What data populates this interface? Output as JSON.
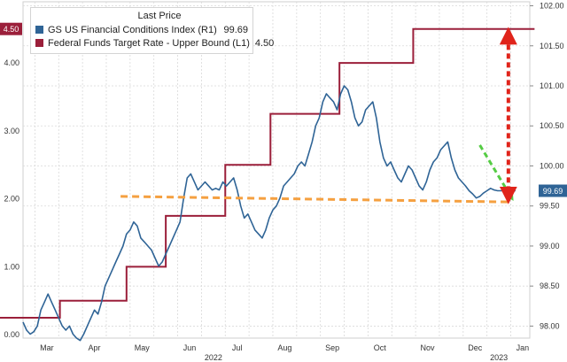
{
  "chart_data": {
    "type": "line",
    "title": "",
    "legend": {
      "header": "Last Price",
      "placement": "top-left"
    },
    "grid": true,
    "x_axis": {
      "labels": [
        "Mar",
        "Apr",
        "May",
        "Jun",
        "Jul",
        "Aug",
        "Sep",
        "Oct",
        "Nov",
        "Dec",
        "Jan"
      ],
      "year_labels": [
        {
          "text": "2022",
          "month_index": 9
        },
        {
          "text": "2023",
          "month_index": 21
        }
      ],
      "range": [
        1.5,
        22.8
      ]
    },
    "y_left": {
      "ticks": [
        "0.00",
        "1.00",
        "2.00",
        "3.00",
        "4.00"
      ],
      "tick_values": [
        0,
        1,
        2,
        3,
        4
      ],
      "range": [
        -0.05,
        4.9
      ]
    },
    "y_right": {
      "ticks": [
        "98.00",
        "98.50",
        "99.00",
        "99.50",
        "100.00",
        "100.50",
        "101.00",
        "101.50",
        "102.00"
      ],
      "tick_values": [
        98.0,
        98.5,
        99.0,
        99.5,
        100.0,
        100.5,
        101.0,
        101.5,
        102.0
      ],
      "range": [
        97.85,
        102.05
      ]
    },
    "series": [
      {
        "name": "GS US Financial Conditions Index (R1)",
        "last_value": "99.69",
        "axis": "right",
        "color": "#2f6496",
        "x": [
          1.5,
          1.65,
          1.8,
          1.95,
          2.1,
          2.25,
          2.4,
          2.55,
          2.7,
          2.85,
          3.0,
          3.15,
          3.3,
          3.45,
          3.6,
          3.75,
          3.9,
          4.05,
          4.2,
          4.35,
          4.5,
          4.65,
          4.8,
          4.95,
          5.1,
          5.25,
          5.4,
          5.55,
          5.7,
          5.85,
          6.0,
          6.15,
          6.3,
          6.45,
          6.6,
          6.75,
          6.9,
          7.05,
          7.2,
          7.35,
          7.5,
          7.65,
          7.8,
          7.95,
          8.1,
          8.25,
          8.4,
          8.55,
          8.7,
          8.85,
          9.0,
          9.15,
          9.3,
          9.45,
          9.6,
          9.75,
          9.9,
          10.05,
          10.2,
          10.35,
          10.5,
          10.65,
          10.8,
          10.95,
          11.1,
          11.25,
          11.4,
          11.55,
          11.7,
          11.85,
          12.0,
          12.15,
          12.3,
          12.45,
          12.6,
          12.75,
          12.9,
          13.05,
          13.2,
          13.35,
          13.5,
          13.65,
          13.8,
          13.95,
          14.1,
          14.25,
          14.4,
          14.55,
          14.7,
          14.85,
          15.0,
          15.15,
          15.3,
          15.45,
          15.6,
          15.75,
          15.9,
          16.05,
          16.2,
          16.35,
          16.5,
          16.65,
          16.8,
          16.95,
          17.1,
          17.25,
          17.4,
          17.55,
          17.7,
          17.85,
          18.0,
          18.15,
          18.3,
          18.45,
          18.6,
          18.75,
          18.9,
          19.05,
          19.2,
          19.35,
          19.5,
          19.65,
          19.8,
          19.95,
          20.1,
          20.25,
          20.4,
          20.55,
          20.7,
          20.85,
          21.0,
          21.15,
          21.3,
          21.45,
          21.6,
          21.75,
          21.9,
          22.05,
          22.2
        ],
        "values": [
          98.05,
          97.95,
          97.9,
          97.93,
          98.0,
          98.2,
          98.3,
          98.4,
          98.3,
          98.2,
          98.1,
          98.0,
          97.95,
          98.0,
          97.9,
          97.85,
          97.82,
          97.9,
          98.0,
          98.1,
          98.2,
          98.15,
          98.3,
          98.5,
          98.6,
          98.7,
          98.8,
          98.9,
          99.0,
          99.15,
          99.2,
          99.3,
          99.25,
          99.1,
          99.05,
          99.0,
          98.95,
          98.85,
          98.75,
          98.8,
          98.9,
          99.0,
          99.1,
          99.2,
          99.3,
          99.6,
          99.85,
          99.9,
          99.8,
          99.7,
          99.75,
          99.8,
          99.75,
          99.7,
          99.72,
          99.7,
          99.8,
          99.75,
          99.8,
          99.85,
          99.7,
          99.5,
          99.35,
          99.4,
          99.3,
          99.2,
          99.15,
          99.1,
          99.2,
          99.35,
          99.45,
          99.5,
          99.6,
          99.75,
          99.8,
          99.85,
          99.9,
          100.0,
          100.05,
          100.0,
          100.15,
          100.3,
          100.5,
          100.6,
          100.8,
          100.9,
          100.85,
          100.8,
          100.7,
          100.9,
          101.0,
          100.95,
          100.8,
          100.6,
          100.5,
          100.55,
          100.7,
          100.75,
          100.8,
          100.6,
          100.3,
          100.1,
          100.0,
          100.05,
          99.95,
          99.85,
          99.8,
          99.9,
          100.0,
          99.95,
          99.85,
          99.75,
          99.7,
          99.8,
          99.95,
          100.05,
          100.1,
          100.2,
          100.25,
          100.3,
          100.1,
          99.95,
          99.85,
          99.8,
          99.75,
          99.69,
          99.65,
          99.6,
          99.62,
          99.66,
          99.69,
          99.72,
          99.7,
          99.69,
          99.69,
          99.69,
          99.69,
          99.69,
          99.69
        ]
      },
      {
        "name": "Federal Funds Target Rate - Upper Bound (L1)",
        "last_value": "4.50",
        "axis": "left",
        "color": "#9b1f3a",
        "step": true,
        "x": [
          0.5,
          3.05,
          5.85,
          7.5,
          10.0,
          11.9,
          14.8,
          17.9,
          20.7,
          23.0
        ],
        "values": [
          0.25,
          0.5,
          1.0,
          1.75,
          2.5,
          3.25,
          4.0,
          4.5,
          4.5,
          4.5
        ]
      }
    ],
    "annotations": [
      {
        "type": "dashed-line",
        "color": "#f5a040",
        "x": [
          5.6,
          22.0
        ],
        "y_right": [
          99.62,
          99.55
        ]
      },
      {
        "type": "dashed-arrow",
        "color": "#55cc44",
        "x": [
          20.7,
          22.0
        ],
        "y_right": [
          100.26,
          99.62
        ]
      },
      {
        "type": "double-arrow",
        "color": "#e0241b",
        "x": 21.9,
        "y_left": [
          4.4,
          2.05
        ]
      }
    ],
    "last_value_tags": [
      {
        "label": "4.50",
        "axis": "left",
        "value": 4.5,
        "color": "#9b1f3a"
      },
      {
        "label": "99.69",
        "axis": "right",
        "value": 99.69,
        "color": "#2f6496"
      }
    ]
  }
}
